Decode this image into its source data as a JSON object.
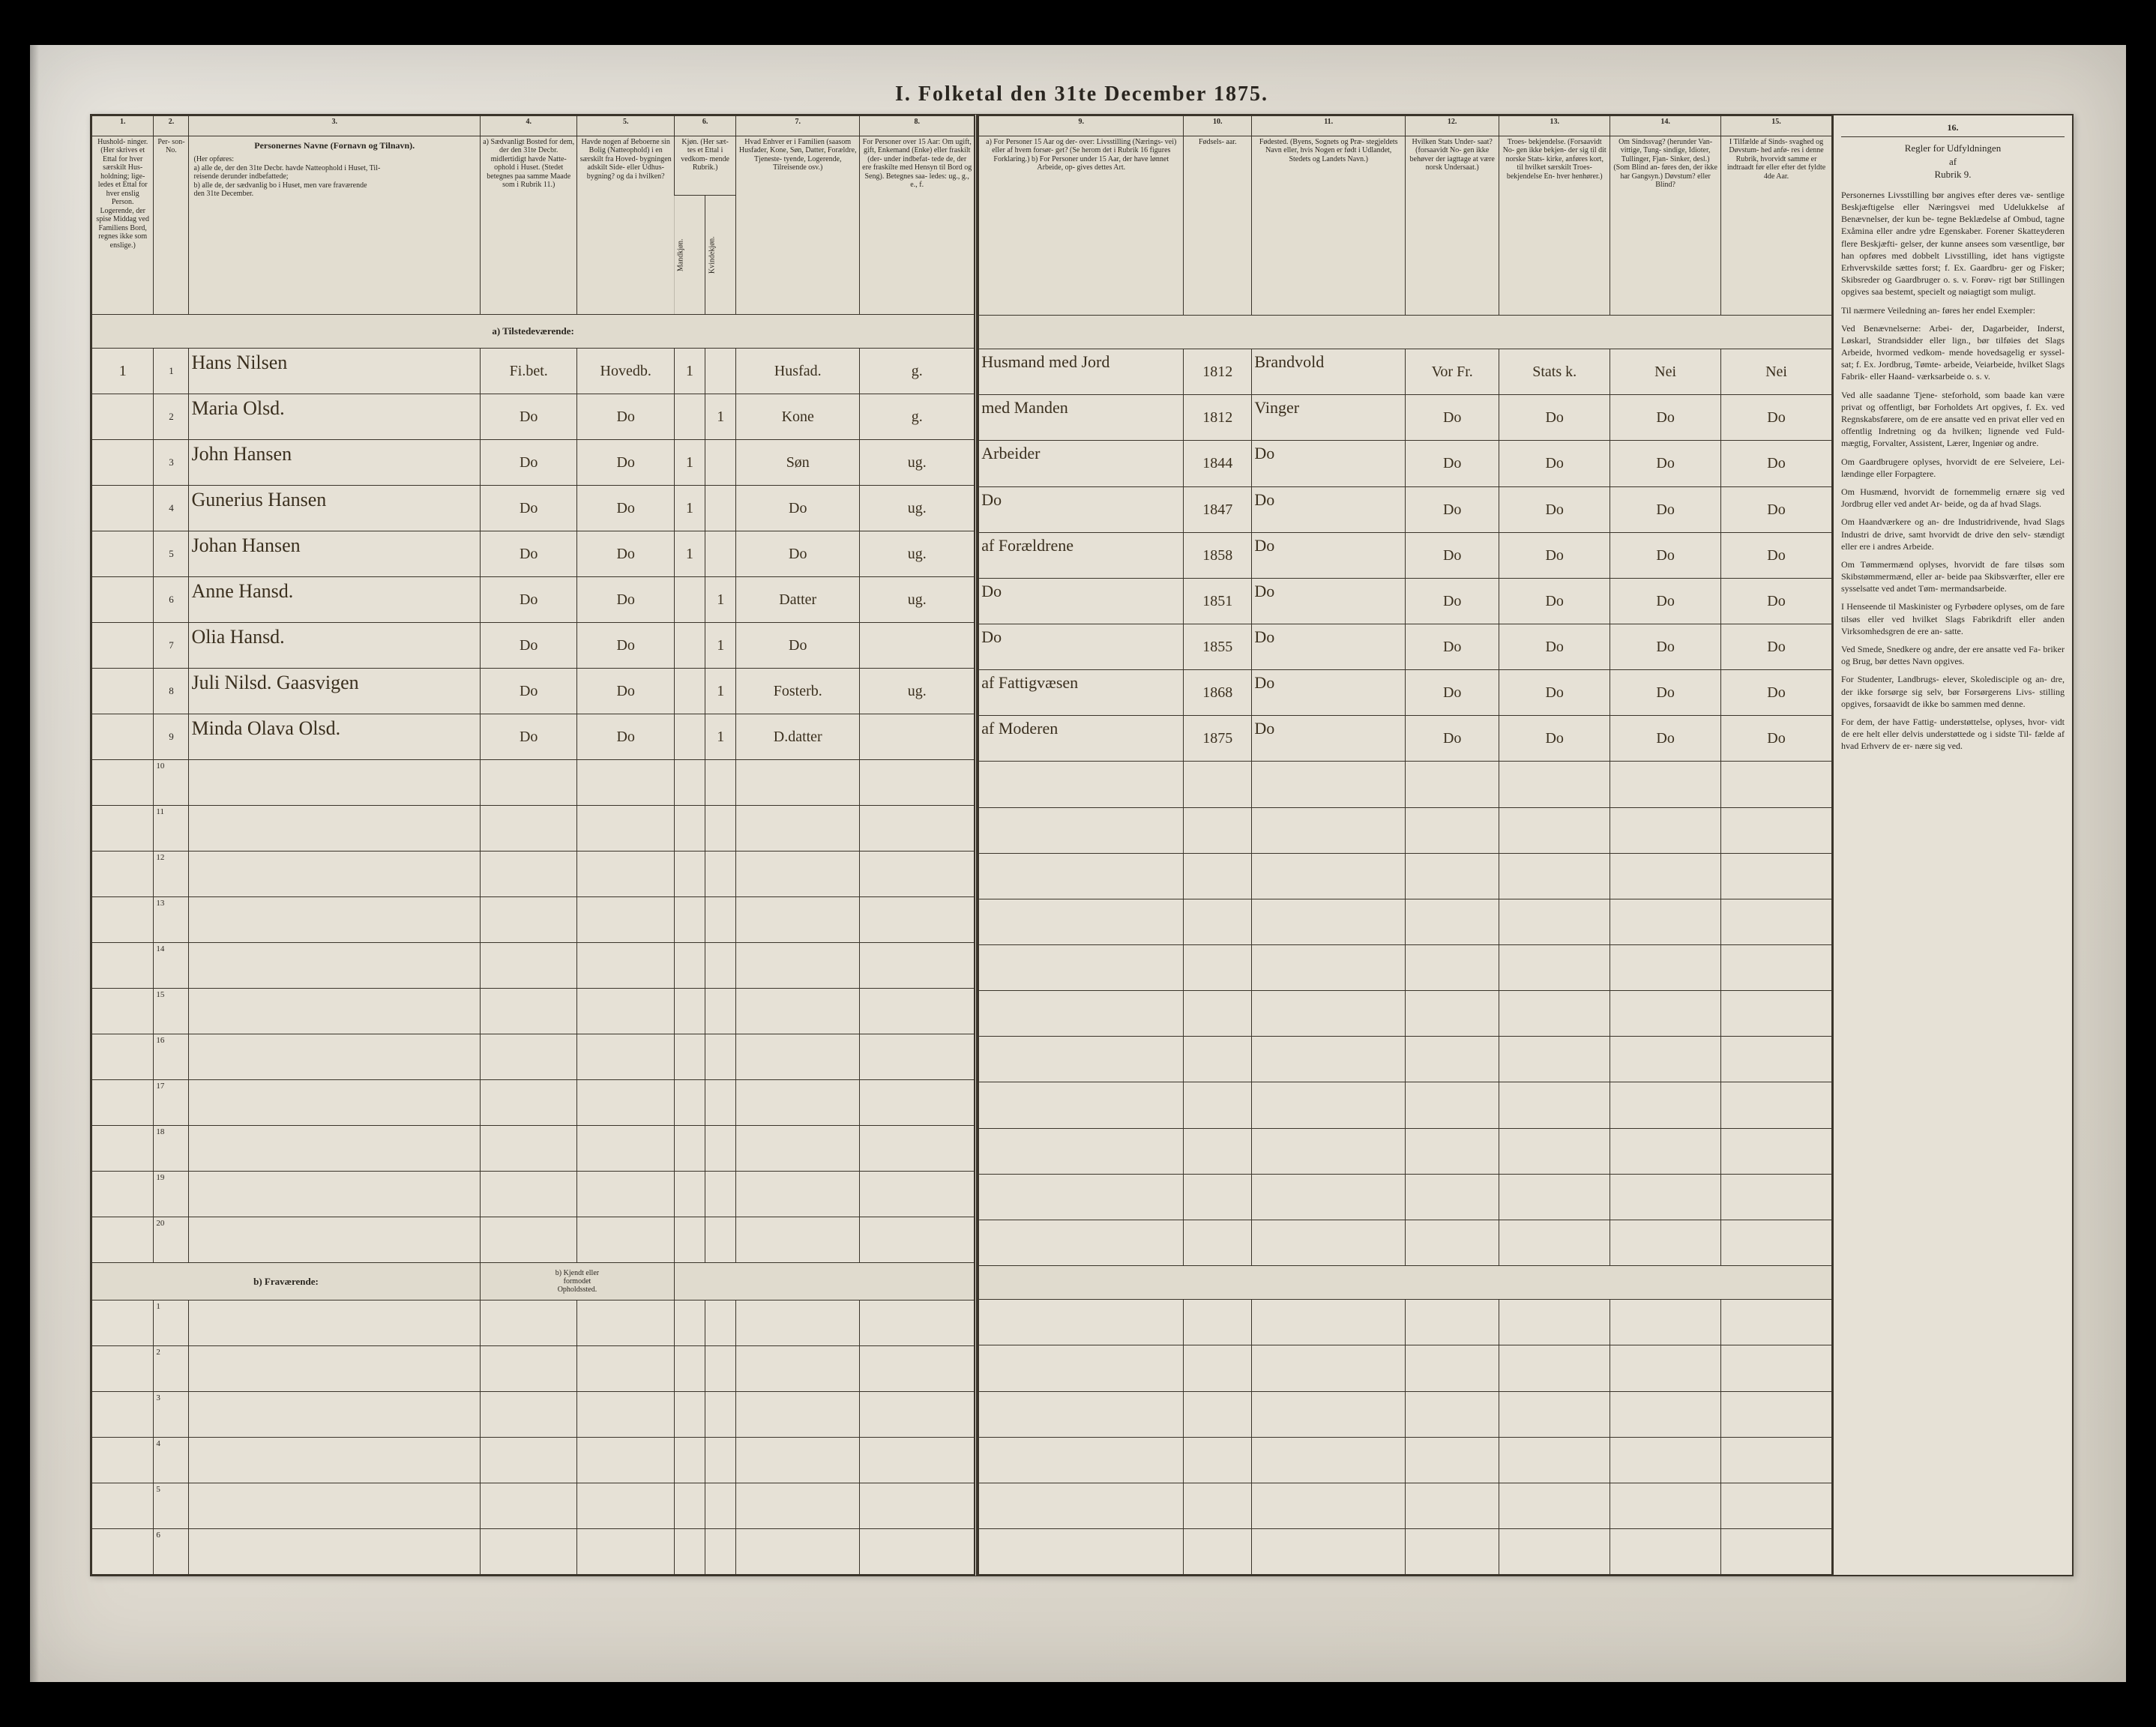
{
  "title": "I. Folketal den 31te December 1875.",
  "colnums_left": [
    "1.",
    "2.",
    "3.",
    "4.",
    "5.",
    "6.",
    "7.",
    "8."
  ],
  "colnums_right": [
    "9.",
    "10.",
    "11.",
    "12.",
    "13.",
    "14.",
    "15.",
    "16."
  ],
  "headers_left": {
    "c1": "Hushold-\nninger.\n(Her skrives et\nEttal for hver\nsærskilt Hus-\nholdning; lige-\nledes et Ettal for\nhver enslig\nPerson.\nLogerende,\nder spise Middag\nved Familiens\nBord, regnes ikke\nsom enslige.)",
    "c2": "Per-\nson-\nNo.",
    "c3_title": "Personernes Navne (Fornavn og Tilnavn).",
    "c3_sub": "(Her opføres:\na) alle de, der den 31te Decbr. havde Natteophold i Huset, Til-\nreisende derunder indbefattede;\nb) alle de, der sædvanlig bo i Huset, men vare fraværende\nden 31te December.",
    "c4": "a) Sædvanligt\nBosted for\ndem, der den\n31te Decbr.\nmidlertidigt\nhavde Natte-\nophold i Huset.\n(Stedet betegnes\npaa samme Maade\nsom i Rubrik 11.)",
    "c5": "Havde nogen\naf Beboerne\nsin Bolig\n(Natteophold)\ni en særskilt\nfra Hoved-\nbygningen\nadskilt Side-\neller Udhus-\nbygning?\nog da i\nhvilken?",
    "c6": "Kjøn.\n(Her sæt-\ntes et\nEttal i\nvedkom-\nmende\nRubrik.)",
    "c6a": "Mandkjøn.",
    "c6b": "Kvindekjøn.",
    "c7": "Hvad Enhver er\ni Familien\n(saasom Husfader,\nKone, Søn, Datter,\nForældre, Tjeneste-\ntyende, Logerende,\nTilreisende osv.)",
    "c8": "For Personer\nover 15 Aar:\nOm ugift, gift,\nEnkemand\n(Enke) eller\nfraskilt (der-\nunder indbefat-\ntede de, der ere\nfraskilte med\nHensyn til Bord\nog Seng).\nBetegnes saa-\nledes:\nug., g., e., f."
  },
  "headers_right": {
    "c9": "a) For Personer 15 Aar og der-\nover: Livsstilling (Nærings-\nvei) eller af hvem forsør-\nget? (Se herom det i Rubrik 16\nfigures Forklaring.)\nb) For Personer under 15 Aar,\nder have lønnet Arbeide, op-\ngives dettes Art.",
    "c10": "Fødsels-\naar.",
    "c11": "Fødested.\n(Byens, Sognets og Præ-\nstegjeldets Navn eller, hvis\nNogen er født i Udlandet,\nStedets og Landets\nNavn.)",
    "c12": "Hvilken\nStats Under-\nsaat?\n(forsaavidt No-\ngen ikke behøver\nder iagttage at være\nnorsk\nUndersaat.)",
    "c13": "Troes-\nbekjendelse.\n(Forsaavidt No-\ngen ikke bekjen-\nder sig til dit\nnorske Stats-\nkirke, anføres\nkort, til hvilket\nsærskilt Troes-\nbekjendelse En-\nhver henhører.)",
    "c14": "Om\nSindssvag?\n(herunder Van-\nvittige, Tung-\nsindige, Idioter,\nTullinger, Fjan-\nSinker, desl.)\n(Som Blind an-\nføres den, der\nikke har\nGangsyn.)\nDøvstum?\neller Blind?",
    "c15": "I Tilfælde\naf Sinds-\nsvaghed og\nDøvstum-\nhed anfø-\nres i denne\nRubrik,\nhvorvidt\nsamme er\nindtraadt\nfør eller\nefter det\nfyldte\n4de Aar.",
    "c16_title": "Regler for Udfyldningen\naf\nRubrik 9."
  },
  "section_a": "a) Tilstedeværende:",
  "section_b": "b) Fraværende:",
  "section_b_right": "b) Kjendt eller\nformodet\nOpholdssted.",
  "rows": [
    {
      "hh": "1",
      "no": "1",
      "name": "Hans Nilsen",
      "c4": "Fi.bet.",
      "c5": "Hovedb.",
      "m": "1",
      "k": "",
      "fam": "Husfad.",
      "civ": "g.",
      "liv": "Husmand med Jord",
      "aar": "1812",
      "fsted": "Brandvold",
      "c12": "Vor Fr.",
      "c13": "Stats k.",
      "c14": "Nei",
      "c15": "Nei"
    },
    {
      "hh": "",
      "no": "2",
      "name": "Maria Olsd.",
      "c4": "Do",
      "c5": "Do",
      "m": "",
      "k": "1",
      "fam": "Kone",
      "civ": "g.",
      "liv": "med Manden",
      "aar": "1812",
      "fsted": "Vinger",
      "c12": "Do",
      "c13": "Do",
      "c14": "Do",
      "c15": "Do"
    },
    {
      "hh": "",
      "no": "3",
      "name": "John Hansen",
      "c4": "Do",
      "c5": "Do",
      "m": "1",
      "k": "",
      "fam": "Søn",
      "civ": "ug.",
      "liv": "Arbeider",
      "aar": "1844",
      "fsted": "Do",
      "c12": "Do",
      "c13": "Do",
      "c14": "Do",
      "c15": "Do"
    },
    {
      "hh": "",
      "no": "4",
      "name": "Gunerius Hansen",
      "c4": "Do",
      "c5": "Do",
      "m": "1",
      "k": "",
      "fam": "Do",
      "civ": "ug.",
      "liv": "Do",
      "aar": "1847",
      "fsted": "Do",
      "c12": "Do",
      "c13": "Do",
      "c14": "Do",
      "c15": "Do"
    },
    {
      "hh": "",
      "no": "5",
      "name": "Johan Hansen",
      "c4": "Do",
      "c5": "Do",
      "m": "1",
      "k": "",
      "fam": "Do",
      "civ": "ug.",
      "liv": "af Forældrene",
      "aar": "1858",
      "fsted": "Do",
      "c12": "Do",
      "c13": "Do",
      "c14": "Do",
      "c15": "Do"
    },
    {
      "hh": "",
      "no": "6",
      "name": "Anne Hansd.",
      "c4": "Do",
      "c5": "Do",
      "m": "",
      "k": "1",
      "fam": "Datter",
      "civ": "ug.",
      "liv": "Do",
      "aar": "1851",
      "fsted": "Do",
      "c12": "Do",
      "c13": "Do",
      "c14": "Do",
      "c15": "Do"
    },
    {
      "hh": "",
      "no": "7",
      "name": "Olia Hansd.",
      "c4": "Do",
      "c5": "Do",
      "m": "",
      "k": "1",
      "fam": "Do",
      "civ": "",
      "liv": "Do",
      "aar": "1855",
      "fsted": "Do",
      "c12": "Do",
      "c13": "Do",
      "c14": "Do",
      "c15": "Do"
    },
    {
      "hh": "",
      "no": "8",
      "name": "Juli Nilsd. Gaasvigen",
      "c4": "Do",
      "c5": "Do",
      "m": "",
      "k": "1",
      "fam": "Fosterb.",
      "civ": "ug.",
      "liv": "af Fattigvæsen",
      "aar": "1868",
      "fsted": "Do",
      "c12": "Do",
      "c13": "Do",
      "c14": "Do",
      "c15": "Do"
    },
    {
      "hh": "",
      "no": "9",
      "name": "Minda Olava Olsd.",
      "c4": "Do",
      "c5": "Do",
      "m": "",
      "k": "1",
      "fam": "D.datter",
      "civ": "",
      "liv": "af Moderen",
      "aar": "1875",
      "fsted": "Do",
      "c12": "Do",
      "c13": "Do",
      "c14": "Do",
      "c15": "Do"
    }
  ],
  "blank_rows": [
    "10",
    "11",
    "12",
    "13",
    "14",
    "15",
    "16",
    "17",
    "18",
    "19",
    "20"
  ],
  "absent_rows": [
    "1",
    "2",
    "3",
    "4",
    "5",
    "6"
  ],
  "sidebar": {
    "p1": "Personernes Livsstilling bør angives efter deres væ-\nsentlige Beskjæftigelse eller Næringsvei med Udelukkelse af Benævnelser, der kun be-\ntegne Beklædelse af Ombud, tagne Exåmina eller andre ydre Egenskaber. Forener Skatteyderen flere Beskjæfti-\ngelser, der kunne ansees som væsentlige, bør han opføres med dobbelt Livsstilling, idet hans vigtigste Erhvervskilde sættes forst; f. Ex. Gaardbru-\nger og Fisker; Skibsreder og Gaardbruger o. s. v.  Forøv-\nrigt bør Stillingen opgives saa bestemt, specielt og nøiagtigt som muligt.",
    "p2": "Til nærmere Veiledning an-\nføres her endel Exempler:",
    "p3": "Ved Benævnelserne: Arbei-\nder, Dagarbeider, Inderst, Løskarl, Strandsidder eller lign., bør tilføies det Slags Arbeide, hvormed vedkom-\nmende hovedsagelig er syssel-\nsat; f. Ex. Jordbrug, Tømte-\narbeide, Veiarbeide, hvilket Slags Fabrik- eller Haand-\nværksarbeide o. s. v.",
    "p4": "Ved alle saadanne Tjene-\nsteforhold, som baade kan være privat og offentligt, bør Forholdets Art opgives, f. Ex. ved Regnskabsførere, om de ere ansatte ved en privat eller ved en offentlig Indretning og da hvilken; lignende ved Fuld-\nmægtig, Forvalter, Assistent, Lærer, Ingeniør og andre.",
    "p5": "Om Gaardbrugere oplyses, hvorvidt de ere Selveiere, Lei-\nlændinge eller Forpagtere.",
    "p6": "Om Husmænd, hvorvidt de fornemmelig ernære sig ved Jordbrug eller ved andet Ar-\nbeide, og da af hvad Slags.",
    "p7": "Om Haandværkere og an-\ndre Industridrivende, hvad Slags Industri de drive, samt hvorvidt de drive den selv-\nstændigt eller ere i andres Arbeide.",
    "p8": "Om Tømmermænd oplyses, hvorvidt de fare tilsøs som Skibstømmermænd, eller ar-\nbeide paa Skibsværfter, eller ere sysselsatte ved andet Tøm-\nmermandsarbeide.",
    "p9": "I Henseende til Maskinister og Fyrbødere oplyses, om de fare tilsøs eller ved hvilket Slags Fabrikdrift eller anden Virksomhedsgren de ere an-\nsatte.",
    "p10": "Ved Smede, Snedkere og andre, der ere ansatte ved Fa-\nbriker og Brug, bør dettes Navn opgives.",
    "p11": "For Studenter, Landbrugs-\nelever, Skoledisciple og an-\ndre, der ikke forsørge sig selv, bør Forsørgerens Livs-\nstilling opgives, forsaavidt de ikke bo sammen med denne.",
    "p12": "For dem, der have Fattig-\nunderstøttelse, oplyses, hvor-\nvidt de ere helt eller delvis understøttede og i sidste Til-\nfælde af hvad Erhverv de er-\nnære sig ved."
  }
}
